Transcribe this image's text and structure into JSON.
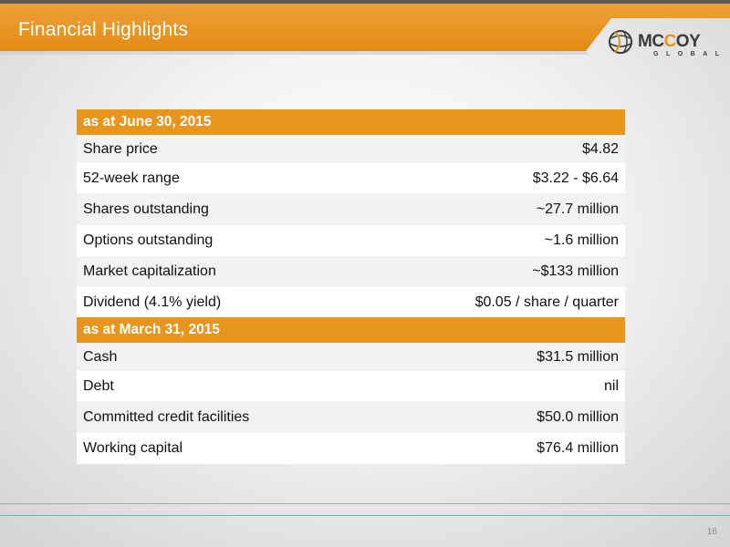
{
  "header": {
    "title": "Financial Highlights",
    "logo_text_prefix": "MC",
    "logo_text_o": "C",
    "logo_text_suffix": "OY",
    "logo_subtext": "GLOBAL"
  },
  "colors": {
    "accent": "#e8951e",
    "header_strip": "#5a5a5a",
    "alt_row": "#f2f2f2"
  },
  "sections": [
    {
      "heading": "as at June 30, 2015",
      "rows": [
        {
          "label": "Share price",
          "value": "$4.82"
        },
        {
          "label": "52-week range",
          "value": "$3.22 - $6.64"
        },
        {
          "label": "Shares outstanding",
          "value": "~27.7 million"
        },
        {
          "label": "Options outstanding",
          "value": "~1.6 million"
        },
        {
          "label": "Market capitalization",
          "value": "~$133 million"
        },
        {
          "label": "Dividend (4.1% yield)",
          "value": "$0.05 / share / quarter"
        }
      ]
    },
    {
      "heading": "as at March 31, 2015",
      "rows": [
        {
          "label": "Cash",
          "value": "$31.5 million"
        },
        {
          "label": "Debt",
          "value": "nil"
        },
        {
          "label": "Committed credit facilities",
          "value": "$50.0 million"
        },
        {
          "label": "Working capital",
          "value": "$76.4 million"
        }
      ]
    }
  ],
  "footer": {
    "page_number": "16"
  }
}
